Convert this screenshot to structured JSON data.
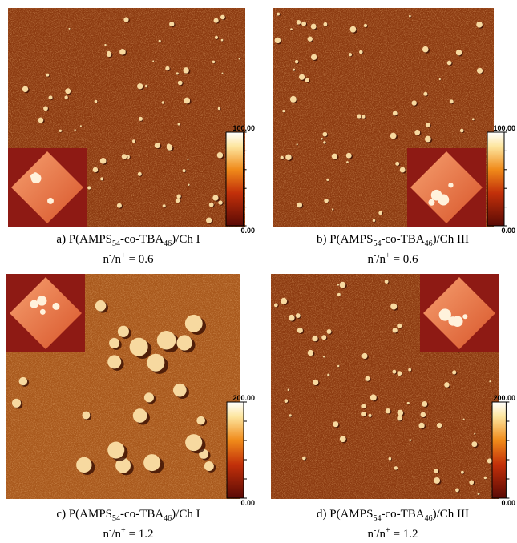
{
  "panels": [
    {
      "caption": {
        "label": "a) P(AMPS",
        "sub1": "54",
        "middle": "-co-TBA",
        "sub2": "46",
        "end": ")/Ch I"
      },
      "ratio": {
        "n": "n",
        "sup1": "-",
        "slash": "/n",
        "sup2": "+",
        "value": "= 0.6"
      },
      "scale": {
        "max": "100.00",
        "min": "0.00"
      }
    },
    {
      "caption": {
        "label": "b) P(AMPS",
        "sub1": "54",
        "middle": "-co-TBA",
        "sub2": "46",
        "end": ")/Ch III"
      },
      "ratio": {
        "n": "n",
        "sup1": "-",
        "slash": "/n",
        "sup2": "+",
        "value": "= 0.6"
      },
      "scale": {
        "max": "100.00",
        "min": "0.00"
      }
    },
    {
      "caption": {
        "label": "c) P(AMPS",
        "sub1": "54",
        "middle": "-co-TBA",
        "sub2": "46",
        "end": ")/Ch I"
      },
      "ratio": {
        "n": "n",
        "sup1": "-",
        "slash": "/n",
        "sup2": "+",
        "value": "= 1.2"
      },
      "scale": {
        "max": "200.00",
        "min": "0.00"
      }
    },
    {
      "caption": {
        "label": "d) P(AMPS",
        "sub1": "54",
        "middle": "-co-TBA",
        "sub2": "46",
        "end": ")/Ch III"
      },
      "ratio": {
        "n": "n",
        "sup1": "-",
        "slash": "/n",
        "sup2": "+",
        "value": "= 1.2"
      },
      "scale": {
        "max": "200.00",
        "min": "0.00"
      }
    }
  ]
}
